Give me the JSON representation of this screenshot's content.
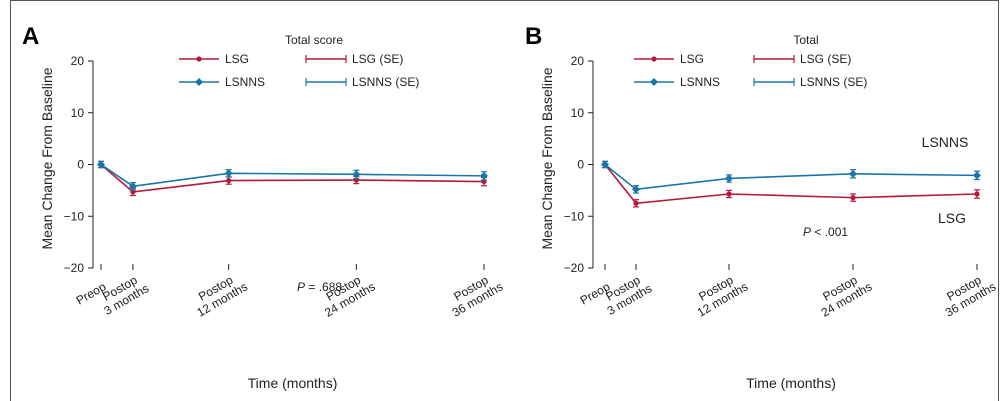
{
  "colors": {
    "lsg": "#b5193a",
    "lsnns": "#1a75a8"
  },
  "chart_data": [
    {
      "type": "line",
      "panel_letter": "A",
      "title": "Total score",
      "xlabel": "Time (months)",
      "ylabel": "Mean Change From Baseline",
      "categories": [
        "Preop",
        "Postop\n3 months",
        "Postop\n12 months",
        "Postop\n24 months",
        "Postop\n36 months"
      ],
      "x": [
        0,
        3,
        12,
        24,
        36
      ],
      "ylim": [
        -20,
        20
      ],
      "yticks": [
        20,
        10,
        0,
        -10,
        -20
      ],
      "ytick_labels": [
        "20",
        "10",
        "0",
        "−10",
        "−20"
      ],
      "legend": {
        "placement": "top",
        "entries": [
          "LSG",
          "LSG (SE)",
          "LSNNS",
          "LSNNS (SE)"
        ]
      },
      "series": [
        {
          "name": "LSG",
          "values": [
            0,
            -5.3,
            -3.1,
            -3.0,
            -3.3
          ],
          "se": [
            0.6,
            0.7,
            0.7,
            0.7,
            0.8
          ]
        },
        {
          "name": "LSNNS",
          "values": [
            0,
            -4.2,
            -1.7,
            -1.9,
            -2.2
          ],
          "se": [
            0.6,
            0.7,
            0.7,
            0.8,
            0.8
          ]
        }
      ],
      "annotations": [
        {
          "italic": "P",
          "text": " = .688"
        }
      ],
      "series_labels": []
    },
    {
      "type": "line",
      "panel_letter": "B",
      "title": "Total",
      "xlabel": "Time (months)",
      "ylabel": "Mean Change From Baseline",
      "categories": [
        "Preop",
        "Postop\n3 months",
        "Postop\n12 months",
        "Postop\n24 months",
        "Postop\n36 months"
      ],
      "x": [
        0,
        3,
        12,
        24,
        36
      ],
      "ylim": [
        -20,
        20
      ],
      "yticks": [
        20,
        10,
        0,
        -10,
        -20
      ],
      "ytick_labels": [
        "20",
        "10",
        "0",
        "−10",
        "−20"
      ],
      "legend": {
        "placement": "top",
        "entries": [
          "LSG",
          "LSG (SE)",
          "LSNNS",
          "LSNNS (SE)"
        ]
      },
      "series": [
        {
          "name": "LSG",
          "values": [
            0,
            -7.5,
            -5.7,
            -6.4,
            -5.7
          ],
          "se": [
            0.6,
            0.7,
            0.7,
            0.7,
            0.8
          ]
        },
        {
          "name": "LSNNS",
          "values": [
            0,
            -4.8,
            -2.7,
            -1.8,
            -2.1
          ],
          "se": [
            0.6,
            0.7,
            0.7,
            0.8,
            0.8
          ]
        }
      ],
      "annotations": [
        {
          "italic": "P",
          "text": " < .001"
        }
      ],
      "series_labels": [
        "LSNNS",
        "LSG"
      ]
    }
  ]
}
